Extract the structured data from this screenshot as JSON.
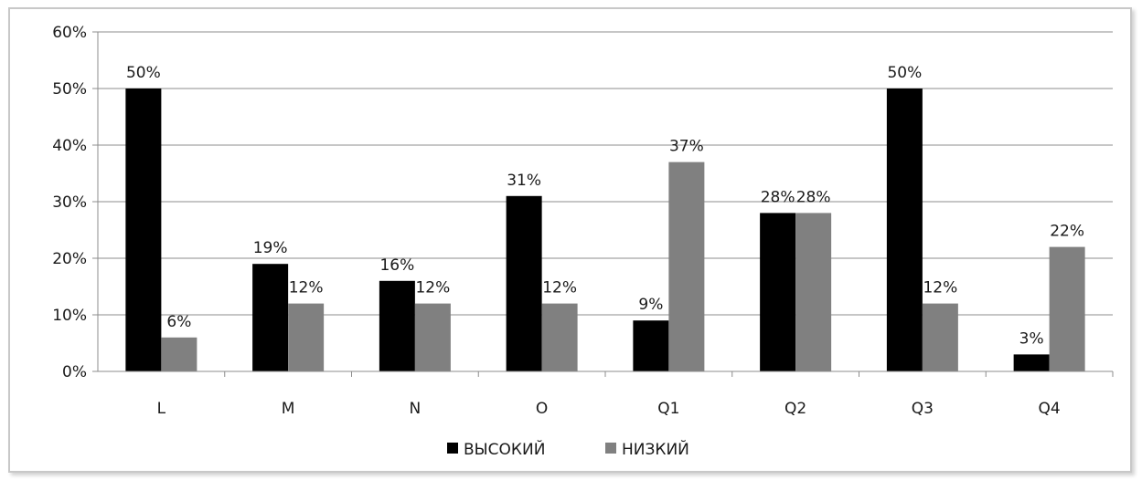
{
  "chart_data": {
    "type": "bar",
    "categories": [
      "L",
      "M",
      "N",
      "O",
      "Q1",
      "Q2",
      "Q3",
      "Q4"
    ],
    "series": [
      {
        "name": "ВЫСОКИЙ",
        "color": "#000000",
        "values": [
          50,
          19,
          16,
          31,
          9,
          28,
          50,
          3
        ]
      },
      {
        "name": "НИЗКИЙ",
        "color": "#808080",
        "values": [
          6,
          12,
          12,
          12,
          37,
          28,
          12,
          22
        ]
      }
    ],
    "value_labels": {
      "ВЫСОКИЙ": [
        "50%",
        "19%",
        "16%",
        "31%",
        "9%",
        "28%",
        "50%",
        "3%"
      ],
      "НИЗКИЙ": [
        "6%",
        "12%",
        "12%",
        "12%",
        "37%",
        "28%",
        "12%",
        "22%"
      ]
    },
    "y_ticks": [
      "0%",
      "10%",
      "20%",
      "30%",
      "40%",
      "50%",
      "60%"
    ],
    "ylim": [
      0,
      60
    ],
    "y_unit": "percent",
    "grid": true,
    "legend_position": "bottom",
    "title": "",
    "xlabel": "",
    "ylabel": ""
  }
}
